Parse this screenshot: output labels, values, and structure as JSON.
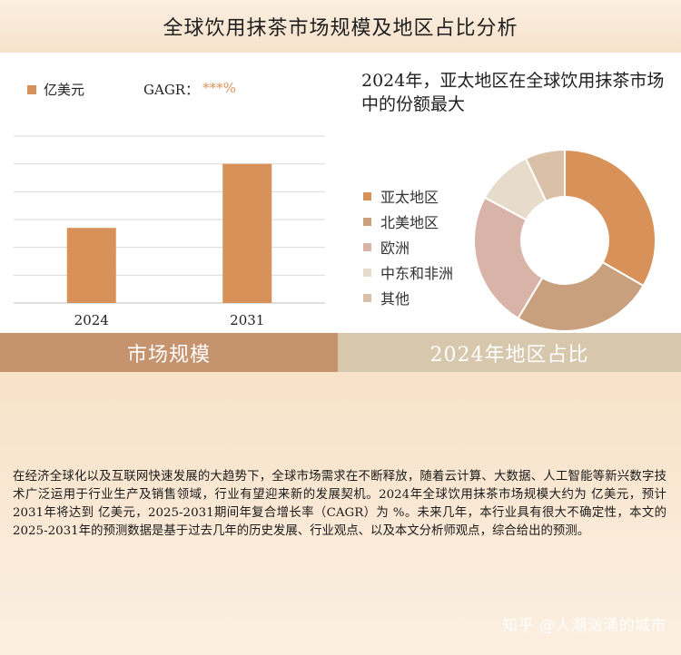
{
  "title": "全球饮用抹茶市场规模及地区占比分析",
  "bar_legend": {
    "label": "亿美元",
    "color": "#d9915a"
  },
  "cagr": {
    "label": "GAGR：",
    "value": "***%"
  },
  "pie_title": "2024年，亚太地区在全球饮用抹茶市场中的份额最大",
  "section_left": "市场规模",
  "section_right": "2024年地区占比",
  "description": "在经济全球化以及互联网快速发展的大趋势下，全球市场需求在不断释放，随着云计算、大数据、人工智能等新兴数字技术广泛运用于行业生产及销售领域，行业有望迎来新的发展契机。2024年全球饮用抹茶市场规模大约为 亿美元，预计2031年将达到 亿美元，2025-2031期间年复合增长率（CAGR）为 %。未来几年，本行业具有很大不确定性，本文的2025-2031年的预测数据是基于过去几年的历史发展、行业观点、以及本文分析师观点，综合给出的预测。",
  "watermark": "知乎 @人潮汹涌的城市",
  "chart_data": [
    {
      "type": "bar",
      "categories": [
        "2024",
        "2031"
      ],
      "series": [
        {
          "name": "亿美元",
          "values": [
            2.7,
            5.0
          ]
        }
      ],
      "ylim": [
        0,
        6
      ],
      "grid": true,
      "legend": "top-left",
      "color": "#d9915a"
    },
    {
      "type": "pie",
      "labels": [
        "亚太地区",
        "北美地区",
        "欧洲",
        "中东和非洲",
        "其他"
      ],
      "values": [
        33,
        25,
        24,
        10,
        7
      ],
      "colors": [
        "#d9915a",
        "#c8a07e",
        "#d8b4a8",
        "#e7dccb",
        "#d9c0a6"
      ],
      "donut": true,
      "legend": "left"
    }
  ]
}
